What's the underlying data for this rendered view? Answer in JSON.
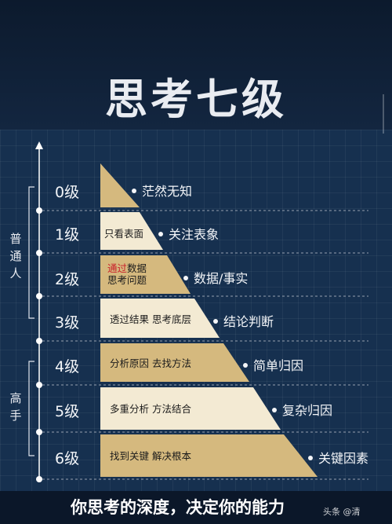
{
  "title": "思考七级",
  "groups": [
    {
      "label": "普通人"
    },
    {
      "label": "高手"
    }
  ],
  "levels": [
    {
      "level": "0级",
      "text": "",
      "result": "茫然无知"
    },
    {
      "level": "1级",
      "text": "只看表面",
      "result": "关注表象"
    },
    {
      "level": "2级",
      "text_hl": "通过",
      "text_rest": "数据",
      "text_line2": "思考问题",
      "result": "数据/事实"
    },
    {
      "level": "3级",
      "text": "透过结果 思考底层",
      "result": "结论判断"
    },
    {
      "level": "4级",
      "text": "分析原因 去找方法",
      "result": "简单归因"
    },
    {
      "level": "5级",
      "text": "多重分析 方法结合",
      "result": "复杂归因"
    },
    {
      "level": "6级",
      "text": "找到关键 解决根本",
      "result": "关键因素"
    }
  ],
  "colors": {
    "background": "#16304f",
    "pyramid_light": "#f3ead3",
    "pyramid_gold": "#d5b97e",
    "highlight": "#c9202a"
  },
  "footer": "你思考的深度，决定你的能力",
  "watermark": "头条 @清"
}
